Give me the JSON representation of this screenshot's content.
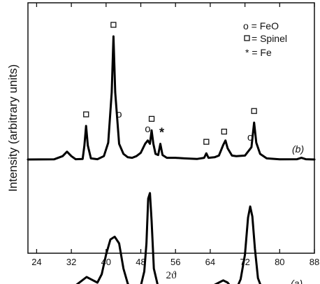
{
  "chart_data": {
    "type": "line",
    "title": "",
    "xlabel": "2ϑ",
    "ylabel": "Intensity (arbitrary units)",
    "xlim": [
      22,
      88
    ],
    "xticks": [
      24,
      32,
      40,
      48,
      56,
      64,
      72,
      80,
      88
    ],
    "y_tick_labels": false,
    "legend": {
      "placement": "top-right",
      "entries": [
        {
          "symbol": "o",
          "label": "o = FeO"
        },
        {
          "symbol": "square",
          "label": "= Spinel"
        },
        {
          "symbol": "*",
          "label": "* = Fe"
        }
      ]
    },
    "series": [
      {
        "curve_label": "(b)",
        "baseline": 0,
        "points": [
          [
            22,
            0
          ],
          [
            28,
            0.3
          ],
          [
            30,
            6
          ],
          [
            31,
            14
          ],
          [
            32,
            6
          ],
          [
            33,
            0.5
          ],
          [
            34.6,
            1
          ],
          [
            35,
            25
          ],
          [
            35.4,
            60
          ],
          [
            35.8,
            25
          ],
          [
            36.5,
            2
          ],
          [
            38,
            0.5
          ],
          [
            39.5,
            6
          ],
          [
            40.5,
            30
          ],
          [
            41.3,
            120
          ],
          [
            41.7,
            220
          ],
          [
            42.1,
            120
          ],
          [
            43,
            28
          ],
          [
            44,
            10
          ],
          [
            45,
            4
          ],
          [
            46,
            3
          ],
          [
            47,
            6
          ],
          [
            48,
            12
          ],
          [
            49,
            28
          ],
          [
            49.6,
            34
          ],
          [
            50.1,
            28
          ],
          [
            50.5,
            52
          ],
          [
            50.9,
            28
          ],
          [
            51.4,
            10
          ],
          [
            52,
            8
          ],
          [
            52.5,
            28
          ],
          [
            53,
            8
          ],
          [
            54,
            3
          ],
          [
            56,
            3
          ],
          [
            58,
            2
          ],
          [
            61,
            1
          ],
          [
            62.6,
            3
          ],
          [
            63.1,
            11
          ],
          [
            63.6,
            3
          ],
          [
            65,
            4
          ],
          [
            66,
            7
          ],
          [
            67,
            26
          ],
          [
            67.5,
            34
          ],
          [
            68,
            20
          ],
          [
            69,
            7
          ],
          [
            70,
            6
          ],
          [
            72,
            7
          ],
          [
            73,
            17
          ],
          [
            73.5,
            22
          ],
          [
            74.1,
            66
          ],
          [
            74.6,
            30
          ],
          [
            75.5,
            10
          ],
          [
            77,
            2
          ],
          [
            80,
            0.3
          ],
          [
            84,
            0.5
          ],
          [
            85,
            3
          ],
          [
            86,
            0.5
          ],
          [
            88,
            0
          ]
        ],
        "peak_markers": [
          {
            "x": 35.4,
            "symbol": "square"
          },
          {
            "x": 41.7,
            "symbol": "square"
          },
          {
            "x": 43.0,
            "symbol": "o"
          },
          {
            "x": 49.6,
            "symbol": "o"
          },
          {
            "x": 50.5,
            "symbol": "square"
          },
          {
            "x": 52.5,
            "symbol": "*"
          },
          {
            "x": 63.1,
            "symbol": "square"
          },
          {
            "x": 67.2,
            "symbol": "square"
          },
          {
            "x": 73.2,
            "symbol": "o"
          },
          {
            "x": 74.1,
            "symbol": "square"
          }
        ]
      },
      {
        "curve_label": "(a)",
        "baseline": -240,
        "points": [
          [
            22,
            -240
          ],
          [
            30,
            -238
          ],
          [
            32,
            -232
          ],
          [
            33,
            -225
          ],
          [
            34.5,
            -216
          ],
          [
            35.5,
            -210
          ],
          [
            36.5,
            -214
          ],
          [
            38,
            -220
          ],
          [
            39,
            -205
          ],
          [
            40,
            -170
          ],
          [
            41,
            -143
          ],
          [
            42,
            -138
          ],
          [
            43,
            -150
          ],
          [
            44,
            -195
          ],
          [
            45,
            -222
          ],
          [
            46,
            -234
          ],
          [
            47,
            -234
          ],
          [
            48,
            -226
          ],
          [
            48.8,
            -200
          ],
          [
            49.3,
            -150
          ],
          [
            49.7,
            -70
          ],
          [
            50.1,
            -60
          ],
          [
            50.5,
            -110
          ],
          [
            51,
            -195
          ],
          [
            52,
            -228
          ],
          [
            53,
            -236
          ],
          [
            56,
            -240
          ],
          [
            60,
            -240
          ],
          [
            62,
            -234
          ],
          [
            64,
            -228
          ],
          [
            66,
            -220
          ],
          [
            67,
            -216
          ],
          [
            68,
            -220
          ],
          [
            69,
            -230
          ],
          [
            70,
            -232
          ],
          [
            71,
            -214
          ],
          [
            72,
            -170
          ],
          [
            72.7,
            -104
          ],
          [
            73.2,
            -84
          ],
          [
            73.7,
            -102
          ],
          [
            74.3,
            -160
          ],
          [
            75,
            -212
          ],
          [
            76,
            -233
          ],
          [
            78,
            -239
          ],
          [
            82,
            -240
          ],
          [
            88,
            -240
          ]
        ]
      }
    ]
  }
}
